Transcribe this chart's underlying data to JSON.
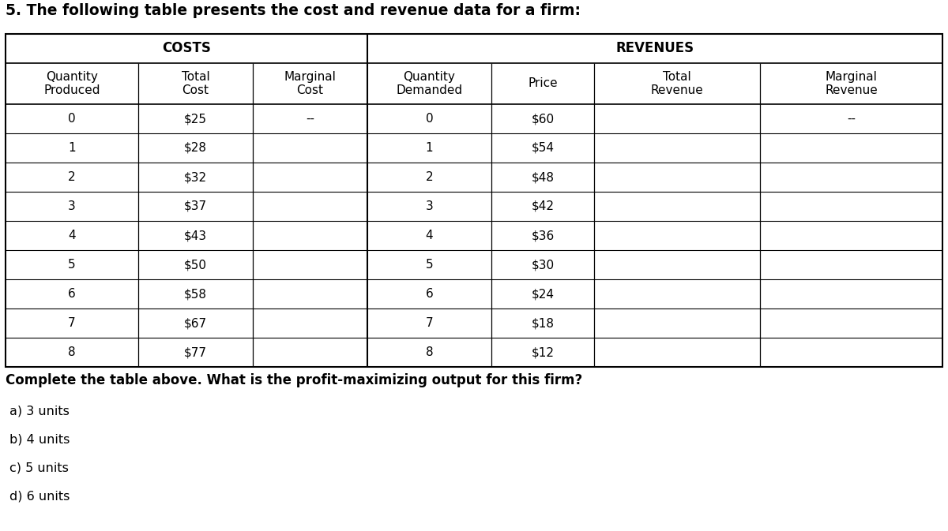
{
  "title": "5. The following table presents the cost and revenue data for a firm:",
  "costs_header": "COSTS",
  "revenues_header": "REVENUES",
  "col_headers": [
    "Quantity\nProduced",
    "Total\nCost",
    "Marginal\nCost",
    "Quantity\nDemanded",
    "Price",
    "Total\nRevenue",
    "Marginal\nRevenue"
  ],
  "rows": [
    [
      "0",
      "$25",
      "--",
      "0",
      "$60",
      "",
      "--"
    ],
    [
      "1",
      "$28",
      "",
      "1",
      "$54",
      "",
      ""
    ],
    [
      "2",
      "$32",
      "",
      "2",
      "$48",
      "",
      ""
    ],
    [
      "3",
      "$37",
      "",
      "3",
      "$42",
      "",
      ""
    ],
    [
      "4",
      "$43",
      "",
      "4",
      "$36",
      "",
      ""
    ],
    [
      "5",
      "$50",
      "",
      "5",
      "$30",
      "",
      ""
    ],
    [
      "6",
      "$58",
      "",
      "6",
      "$24",
      "",
      ""
    ],
    [
      "7",
      "$67",
      "",
      "7",
      "$18",
      "",
      ""
    ],
    [
      "8",
      "$77",
      "",
      "8",
      "$12",
      "",
      ""
    ]
  ],
  "question": "Complete the table above. What is the profit-maximizing output for this firm?",
  "choices": [
    "a) 3 units",
    "b) 4 units",
    "c) 5 units",
    "d) 6 units"
  ],
  "background_color": "#ffffff",
  "title_fontsize": 13.5,
  "group_header_fontsize": 12,
  "col_header_fontsize": 11,
  "cell_fontsize": 11,
  "question_fontsize": 12,
  "choice_fontsize": 11.5
}
